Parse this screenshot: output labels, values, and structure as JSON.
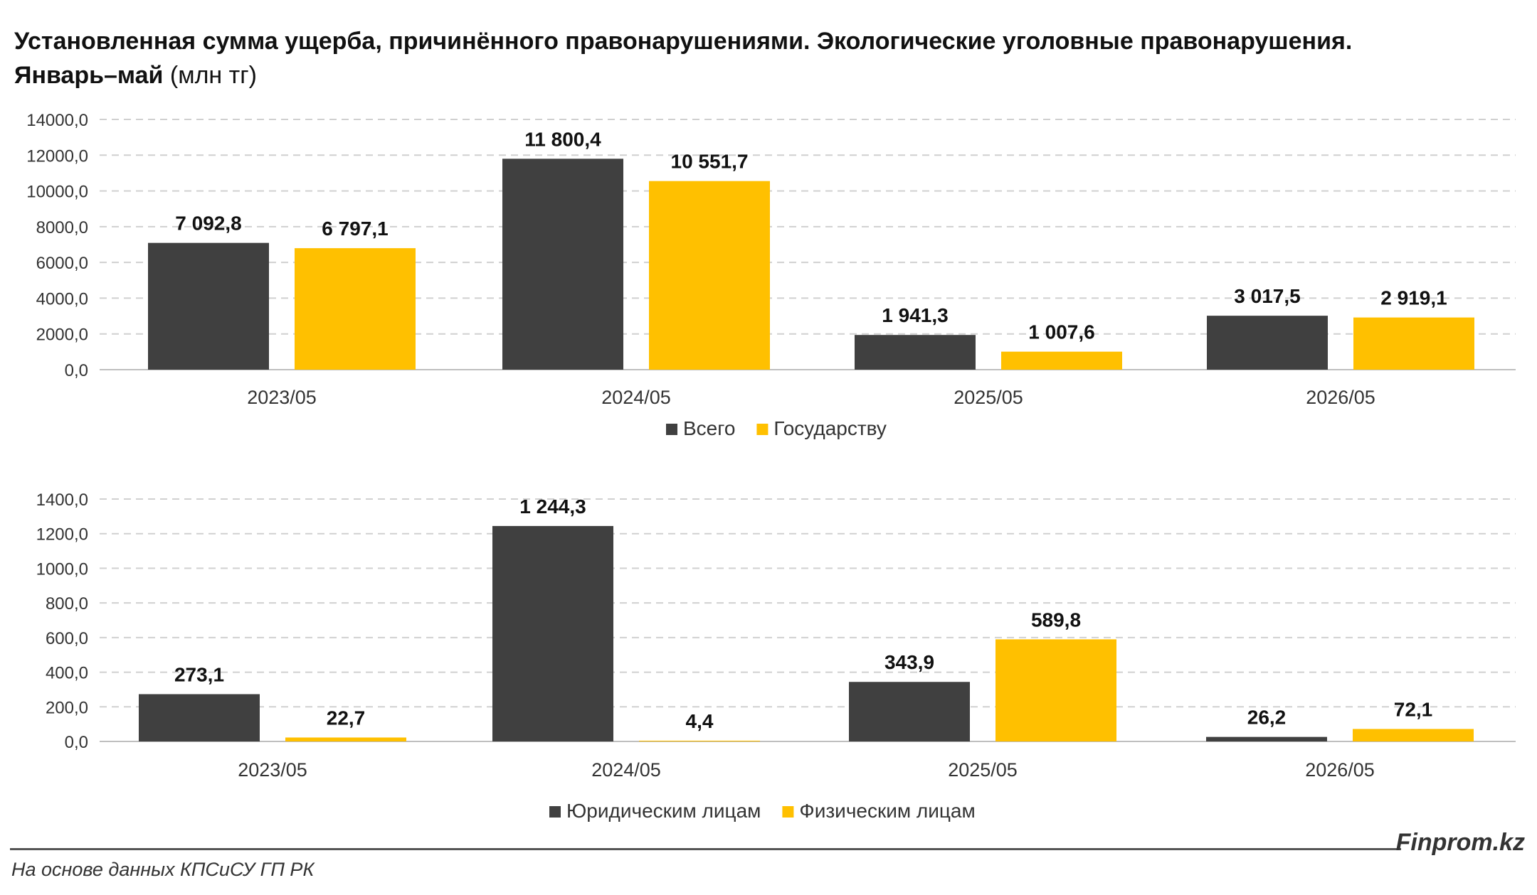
{
  "title": {
    "line1": "Установленная сумма ущерба, причинённого правонарушениями. Экологические уголовные правонарушения.",
    "line2_bold": "Январь–май",
    "line2_rest": " (млн тг)"
  },
  "colors": {
    "dark": "#404040",
    "gold": "#FFC000",
    "grid": "#d0d0d0"
  },
  "chart_data": [
    {
      "type": "bar",
      "categories": [
        "2023/05",
        "2024/05",
        "2025/05",
        "2026/05"
      ],
      "series": [
        {
          "name": "Всего",
          "color": "#404040",
          "values": [
            7092.8,
            11800.4,
            1941.3,
            3017.5
          ],
          "labels": [
            "7 092,8",
            "11 800,4",
            "1 941,3",
            "3 017,5"
          ]
        },
        {
          "name": "Государству",
          "color": "#FFC000",
          "values": [
            6797.1,
            10551.7,
            1007.6,
            2919.1
          ],
          "labels": [
            "6 797,1",
            "10 551,7",
            "1 007,6",
            "2 919,1"
          ]
        }
      ],
      "ylim": [
        0,
        14000
      ],
      "yticks": [
        0,
        2000,
        4000,
        6000,
        8000,
        10000,
        12000,
        14000
      ],
      "ytick_labels": [
        "0,0",
        "2000,0",
        "4000,0",
        "6000,0",
        "8000,0",
        "10000,0",
        "12000,0",
        "14000,0"
      ],
      "grid": true,
      "legend": "bottom"
    },
    {
      "type": "bar",
      "categories": [
        "2023/05",
        "2024/05",
        "2025/05",
        "2026/05"
      ],
      "series": [
        {
          "name": "Юридическим лицам",
          "color": "#404040",
          "values": [
            273.1,
            1244.3,
            343.9,
            26.2
          ],
          "labels": [
            "273,1",
            "1 244,3",
            "343,9",
            "26,2"
          ]
        },
        {
          "name": "Физическим лицам",
          "color": "#FFC000",
          "values": [
            22.7,
            4.4,
            589.8,
            72.1
          ],
          "labels": [
            "22,7",
            "4,4",
            "589,8",
            "72,1"
          ]
        }
      ],
      "ylim": [
        0,
        1400
      ],
      "yticks": [
        0,
        200,
        400,
        600,
        800,
        1000,
        1200,
        1400
      ],
      "ytick_labels": [
        "0,0",
        "200,0",
        "400,0",
        "600,0",
        "800,0",
        "1000,0",
        "1200,0",
        "1400,0"
      ],
      "grid": true,
      "legend": "bottom"
    }
  ],
  "footer": {
    "brand": "Finprom.kz",
    "source": "На основе данных КПСиСУ ГП РК"
  }
}
